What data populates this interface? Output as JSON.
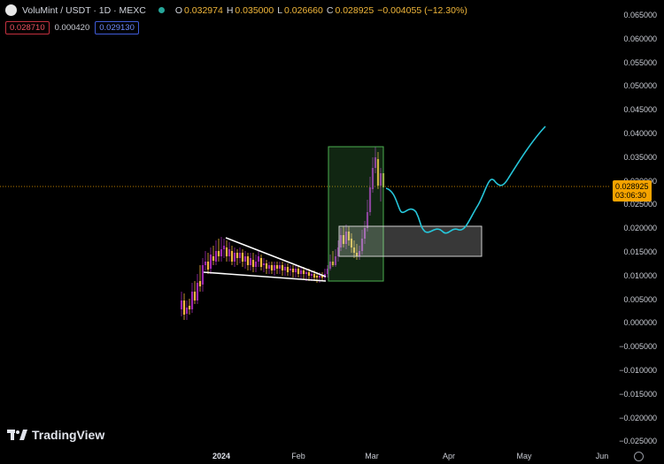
{
  "legend": {
    "symbol": "VoluMint / USDT · 1D · MEXC",
    "ohlc": [
      {
        "k": "O",
        "v": "0.032974"
      },
      {
        "k": "H",
        "v": "0.035000"
      },
      {
        "k": "L",
        "v": "0.026660"
      },
      {
        "k": "C",
        "v": "0.028925"
      }
    ],
    "change": "−0.004055 (−12.30%)",
    "bid": "0.028710",
    "spread": "0.000420",
    "ask": "0.029130"
  },
  "price_tag": {
    "price": "0.028925",
    "countdown": "03:06:30"
  },
  "brand": "TradingView",
  "colors": {
    "up": "#26a69a",
    "down": "#ef5350",
    "candle_up": "#9c27b0",
    "candle_down": "#f0b63a",
    "projection": "#26c6da",
    "box_green": "#4caf50"
  },
  "chart_data": {
    "type": "candlestick",
    "y_ticks": [
      "0.065000",
      "0.060000",
      "0.055000",
      "0.050000",
      "0.045000",
      "0.040000",
      "0.035000",
      "0.030000",
      "0.025000",
      "0.020000",
      "0.015000",
      "0.010000",
      "0.005000",
      "0.000000",
      "−0.005000",
      "−0.010000",
      "−0.015000",
      "−0.020000",
      "−0.025000"
    ],
    "x_ticks": [
      "2024",
      "Feb",
      "Mar",
      "Apr",
      "May",
      "Jun"
    ],
    "ylim": [
      -0.025,
      0.065
    ],
    "last_price": 0.028925,
    "projection_path": [
      [
        0.029,
        0.029
      ],
      [
        0.026,
        0.022
      ],
      [
        0.0215,
        0.0195
      ],
      [
        0.0195,
        0.02
      ],
      [
        0.0215,
        0.024
      ],
      [
        0.03,
        0.031
      ],
      [
        0.029,
        0.034
      ],
      [
        0.038,
        0.042
      ]
    ]
  }
}
